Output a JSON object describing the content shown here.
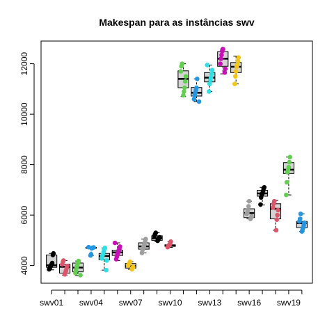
{
  "chart_data": {
    "type": "boxplot",
    "title": "Makespan para as instâncias swv",
    "xlabel": "",
    "ylabel": "",
    "ylim": [
      3300,
      12900
    ],
    "y_ticks": [
      4000,
      6000,
      8000,
      10000,
      12000
    ],
    "y_tick_labels": [
      "4000",
      "6000",
      "8000",
      "10000",
      "12000"
    ],
    "x_tick_labels": [
      "swv01",
      "swv04",
      "swv07",
      "swv10",
      "swv13",
      "swv16",
      "swv19"
    ],
    "x_tick_positions": [
      1,
      4,
      7,
      10,
      13,
      16,
      19
    ],
    "grid": false,
    "legend": "none",
    "categories": [
      "swv01",
      "swv02",
      "swv03",
      "swv04",
      "swv05",
      "swv06",
      "swv07",
      "swv08",
      "swv09",
      "swv10",
      "swv11",
      "swv12",
      "swv13",
      "swv14",
      "swv15",
      "swv16",
      "swv17",
      "swv18",
      "swv19",
      "swv20"
    ],
    "boxes": [
      {
        "min": 3830,
        "q1": 3930,
        "median": 4010,
        "q3": 4420,
        "max": 4480,
        "color": "#000000",
        "points": [
          3850,
          3900,
          3950,
          4000,
          4050,
          4100,
          4420,
          4480
        ]
      },
      {
        "min": 3620,
        "q1": 3700,
        "median": 3950,
        "q3": 4050,
        "max": 4200,
        "color": "#DF536B",
        "points": [
          3650,
          3720,
          3800,
          3900,
          3980,
          4050,
          4150,
          4200
        ]
      },
      {
        "min": 3600,
        "q1": 3750,
        "median": 3920,
        "q3": 4100,
        "max": 4180,
        "color": "#61D04F",
        "points": [
          3620,
          3700,
          3800,
          3920,
          4000,
          4100,
          4180
        ]
      },
      {
        "min": 4400,
        "q1": 4690,
        "median": 4700,
        "q3": 4720,
        "max": 4730,
        "color": "#2297E6",
        "points": [
          4400,
          4450,
          4680,
          4700,
          4710,
          4720,
          4730
        ]
      },
      {
        "min": 3820,
        "q1": 4230,
        "median": 4380,
        "q3": 4480,
        "max": 4700,
        "color": "#28E2E5",
        "points": [
          3820,
          4200,
          4280,
          4380,
          4450,
          4550,
          4650,
          4700
        ]
      },
      {
        "min": 4200,
        "q1": 4400,
        "median": 4520,
        "q3": 4610,
        "max": 4900,
        "color": "#CD0BBC",
        "points": [
          4250,
          4350,
          4450,
          4520,
          4600,
          4650,
          4750,
          4900
        ]
      },
      {
        "min": 3850,
        "q1": 3900,
        "median": 3980,
        "q3": 4080,
        "max": 4150,
        "color": "#F5C710",
        "points": [
          3850,
          3900,
          3950,
          4000,
          4050,
          4100,
          4150
        ]
      },
      {
        "min": 4500,
        "q1": 4650,
        "median": 4760,
        "q3": 4900,
        "max": 5050,
        "color": "#9E9E9E",
        "points": [
          4500,
          4620,
          4700,
          4760,
          4850,
          4950,
          5050
        ]
      },
      {
        "min": 4950,
        "q1": 5000,
        "median": 5080,
        "q3": 5180,
        "max": 5300,
        "color": "#000000",
        "points": [
          4980,
          5020,
          5080,
          5120,
          5180,
          5250,
          5300
        ]
      },
      {
        "min": 4720,
        "q1": 4760,
        "median": 4800,
        "q3": 4820,
        "max": 4950,
        "color": "#DF536B",
        "points": [
          4730,
          4780,
          4800,
          4820,
          4870,
          4950
        ]
      },
      {
        "min": 10700,
        "q1": 11050,
        "median": 11400,
        "q3": 11720,
        "max": 12000,
        "color": "#61D04F",
        "points": [
          10750,
          10900,
          11050,
          11300,
          11500,
          11700,
          11900,
          12000
        ]
      },
      {
        "min": 10500,
        "q1": 10720,
        "median": 10850,
        "q3": 11060,
        "max": 11400,
        "color": "#2297E6",
        "points": [
          10500,
          10600,
          10750,
          10850,
          10950,
          11050,
          11400
        ]
      },
      {
        "min": 10900,
        "q1": 11280,
        "median": 11450,
        "q3": 11650,
        "max": 11950,
        "color": "#28E2E5",
        "points": [
          10900,
          11200,
          11350,
          11450,
          11600,
          11750,
          11950
        ]
      },
      {
        "min": 11600,
        "q1": 11900,
        "median": 12200,
        "q3": 12480,
        "max": 12580,
        "color": "#CD0BBC",
        "points": [
          11650,
          11800,
          12000,
          12200,
          12350,
          12500,
          12580
        ]
      },
      {
        "min": 11200,
        "q1": 11650,
        "median": 11880,
        "q3": 12050,
        "max": 12300,
        "color": "#F5C710",
        "points": [
          11200,
          11500,
          11700,
          11880,
          11950,
          12100,
          12250
        ]
      },
      {
        "min": 5850,
        "q1": 5900,
        "median": 6080,
        "q3": 6250,
        "max": 6550,
        "color": "#9E9E9E",
        "points": [
          5850,
          5900,
          5950,
          6050,
          6100,
          6200,
          6350,
          6550
        ]
      },
      {
        "min": 6400,
        "q1": 6750,
        "median": 6860,
        "q3": 6980,
        "max": 7100,
        "color": "#000000",
        "points": [
          6420,
          6700,
          6800,
          6860,
          6950,
          7050,
          7100
        ]
      },
      {
        "min": 5400,
        "q1": 5850,
        "median": 6250,
        "q3": 6450,
        "max": 6580,
        "color": "#DF536B",
        "points": [
          5400,
          5820,
          6000,
          6200,
          6300,
          6450,
          6550
        ]
      },
      {
        "min": 6800,
        "q1": 7650,
        "median": 7800,
        "q3": 8080,
        "max": 8300,
        "color": "#61D04F",
        "points": [
          6800,
          7300,
          7700,
          7800,
          7900,
          8100,
          8300
        ]
      },
      {
        "min": 5350,
        "q1": 5500,
        "median": 5680,
        "q3": 5750,
        "max": 6050,
        "color": "#2297E6",
        "points": [
          5350,
          5420,
          5500,
          5600,
          5700,
          5750,
          5850,
          6050
        ]
      }
    ]
  }
}
